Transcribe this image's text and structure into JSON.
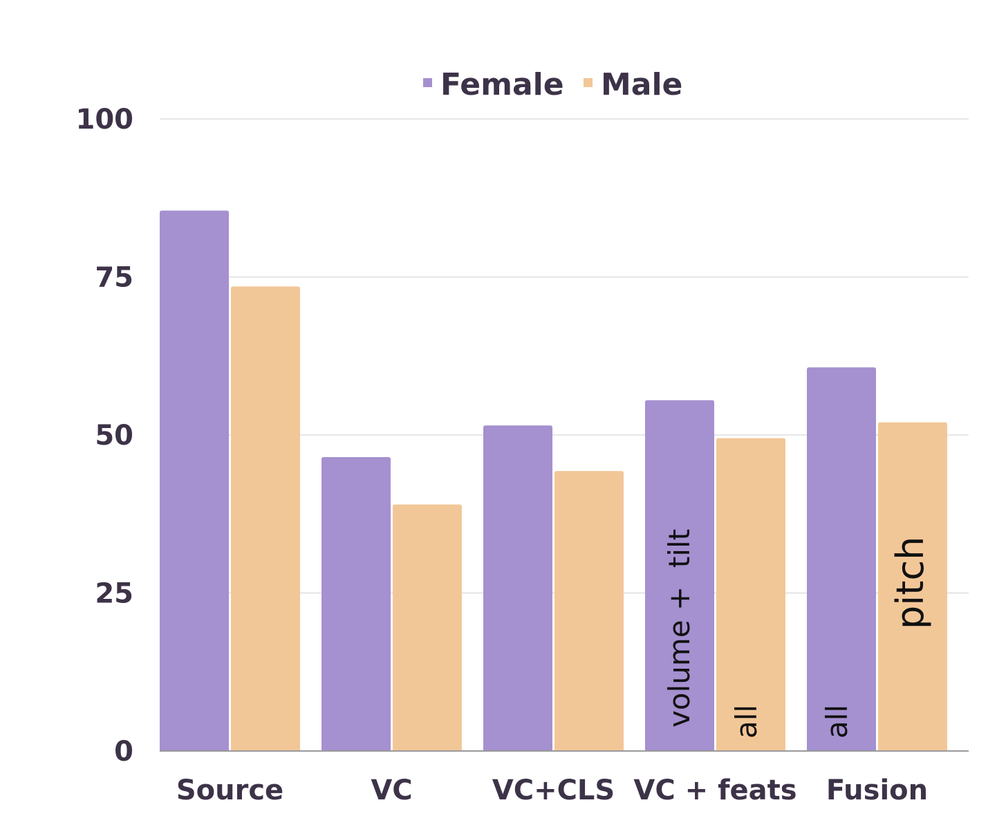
{
  "chart_data": {
    "type": "bar",
    "title": "",
    "xlabel": "",
    "ylabel": "",
    "categories": [
      "Source",
      "VC",
      "VC+CLS",
      "VC + feats",
      "Fusion"
    ],
    "series": [
      {
        "name": "Female",
        "values": [
          85.5,
          46.5,
          51.5,
          55.5,
          60.7
        ],
        "color": "#a590d0"
      },
      {
        "name": "Male",
        "values": [
          73.5,
          39,
          44.3,
          49.5,
          52
        ],
        "color": "#f2c798"
      }
    ],
    "ylim": [
      0,
      100
    ],
    "yticks": [
      "0",
      "25",
      "50",
      "75",
      "100"
    ],
    "legend_position": "top-center",
    "grid": true,
    "annotations": [
      {
        "category": "VC + feats",
        "series": "Female",
        "text": "volume +  tilt"
      },
      {
        "category": "VC + feats",
        "series": "Male",
        "text": "all"
      },
      {
        "category": "Fusion",
        "series": "Female",
        "text": "all"
      },
      {
        "category": "Fusion",
        "series": "Male",
        "text": "pitch"
      }
    ]
  }
}
